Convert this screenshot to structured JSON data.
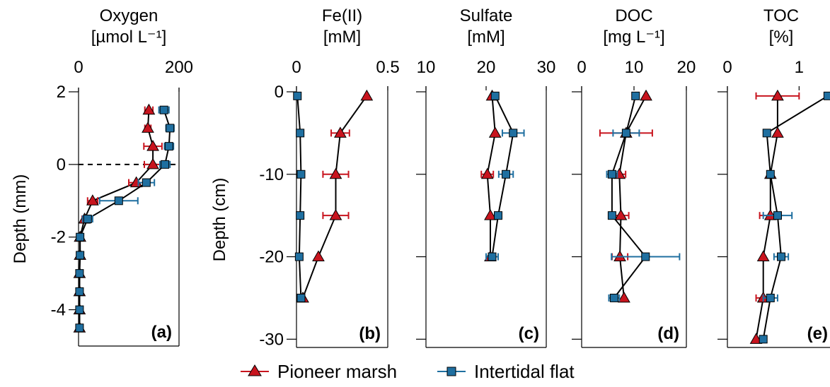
{
  "legend": {
    "series": [
      {
        "name": "Pioneer marsh",
        "color": "#c8141e",
        "marker": "triangle"
      },
      {
        "name": "Intertidal flat",
        "color": "#1f6fa0",
        "marker": "square"
      }
    ]
  },
  "chart_data": [
    {
      "panel": "(a)",
      "type": "line",
      "title": "Oxygen",
      "unit": "[µmol L⁻¹]",
      "ylabel": "Depth (mm)",
      "xlim": [
        0,
        200
      ],
      "ylim": [
        -5,
        2
      ],
      "xticks": [
        0,
        200
      ],
      "yticks": [
        2,
        0,
        -2,
        -4
      ],
      "dashed_zero_line": true,
      "series": [
        {
          "name": "Pioneer marsh",
          "x": [
            140,
            138,
            148,
            148,
            115,
            28,
            12,
            3,
            3,
            2,
            2,
            2,
            2
          ],
          "y": [
            1.5,
            1.0,
            0.5,
            0.0,
            -0.5,
            -1.0,
            -1.5,
            -2.0,
            -2.5,
            -3.0,
            -3.5,
            -4.0,
            -4.5
          ],
          "xerr": [
            8,
            6,
            18,
            17,
            15,
            10,
            5,
            0,
            0,
            0,
            0,
            0,
            0
          ]
        },
        {
          "name": "Intertidal flat",
          "x": [
            170,
            182,
            180,
            172,
            135,
            80,
            18,
            3,
            3,
            2,
            2,
            2,
            2
          ],
          "y": [
            1.5,
            1.0,
            0.5,
            0.0,
            -0.5,
            -1.0,
            -1.5,
            -2.0,
            -2.5,
            -3.0,
            -3.5,
            -4.0,
            -4.5
          ],
          "xerr": [
            10,
            8,
            9,
            10,
            16,
            38,
            10,
            0,
            0,
            0,
            0,
            0,
            0
          ]
        }
      ]
    },
    {
      "panel": "(b)",
      "type": "line",
      "title": "Fe(II)",
      "unit": "[mM]",
      "ylabel": "Depth (cm)",
      "xlim": [
        0,
        0.5
      ],
      "ylim": [
        -31,
        0
      ],
      "xticks": [
        0,
        0.5
      ],
      "yticks": [
        0,
        -10,
        -20,
        -30
      ],
      "series": [
        {
          "name": "Pioneer marsh",
          "x": [
            0.385,
            0.24,
            0.215,
            0.215,
            0.12,
            0.035
          ],
          "y": [
            -0.5,
            -5,
            -10,
            -15,
            -20,
            -25
          ],
          "xerr": [
            0,
            0.05,
            0.07,
            0.07,
            0,
            0
          ]
        },
        {
          "name": "Intertidal flat",
          "x": [
            0.005,
            0.02,
            0.025,
            0.02,
            0.015,
            0.025
          ],
          "y": [
            -0.5,
            -5,
            -10,
            -15,
            -20,
            -25
          ],
          "xerr": [
            0,
            0,
            0,
            0,
            0,
            0
          ]
        }
      ]
    },
    {
      "panel": "(c)",
      "type": "line",
      "title": "Sulfate",
      "unit": "[mM]",
      "xlim": [
        10,
        30
      ],
      "ylim": [
        -31,
        0
      ],
      "xticks": [
        10,
        20,
        30
      ],
      "yticks": [
        0,
        -10,
        -20,
        -30
      ],
      "series": [
        {
          "name": "Pioneer marsh",
          "x": [
            21,
            21.5,
            20.2,
            20.7,
            20.7
          ],
          "y": [
            -0.5,
            -5,
            -10,
            -15,
            -20
          ],
          "xerr": [
            0,
            0,
            1.0,
            0,
            0
          ]
        },
        {
          "name": "Intertidal flat",
          "x": [
            21.5,
            24.5,
            23.3,
            22,
            21
          ],
          "y": [
            -0.5,
            -5,
            -10,
            -15,
            -20
          ],
          "xerr": [
            0,
            1.8,
            1.2,
            0,
            1
          ]
        }
      ]
    },
    {
      "panel": "(d)",
      "type": "line",
      "title": "DOC",
      "unit": "[mg L⁻¹]",
      "xlim": [
        0,
        20
      ],
      "ylim": [
        -31,
        0
      ],
      "xticks": [
        0,
        10,
        20
      ],
      "yticks": [
        0,
        -10,
        -20,
        -30
      ],
      "series": [
        {
          "name": "Pioneer marsh",
          "x": [
            12.3,
            8.5,
            7.2,
            7.5,
            7.3,
            8.1
          ],
          "y": [
            -0.5,
            -5,
            -10,
            -15,
            -20,
            -25
          ],
          "xerr": [
            0,
            5,
            1.2,
            1.5,
            1.5,
            0
          ]
        },
        {
          "name": "Intertidal flat",
          "x": [
            10.3,
            8.5,
            5.8,
            5.8,
            12.2,
            6.2
          ],
          "y": [
            -0.5,
            -5,
            -10,
            -15,
            -20,
            -25
          ],
          "xerr": [
            0,
            2.5,
            1,
            0,
            6.5,
            1
          ]
        }
      ]
    },
    {
      "panel": "(e)",
      "type": "line",
      "title": "TOC",
      "unit": "[%]",
      "xlim": [
        0,
        1.5
      ],
      "ylim": [
        -31,
        0
      ],
      "xticks": [
        0,
        1
      ],
      "yticks": [
        0,
        -10,
        -20,
        -30
      ],
      "series": [
        {
          "name": "Pioneer marsh",
          "x": [
            0.7,
            0.7,
            0.6,
            0.6,
            0.5,
            0.5,
            0.4
          ],
          "y": [
            -0.5,
            -5,
            -10,
            -15,
            -20,
            -25,
            -30
          ],
          "xerr": [
            0.3,
            0,
            0,
            0.15,
            0,
            0.1,
            0
          ]
        },
        {
          "name": "Intertidal flat",
          "x": [
            1.4,
            0.55,
            0.6,
            0.7,
            0.75,
            0.6,
            0.5
          ],
          "y": [
            -0.5,
            -5,
            -10,
            -15,
            -20,
            -25,
            -30
          ],
          "xerr": [
            0,
            0,
            0,
            0.2,
            0.1,
            0.1,
            0
          ]
        }
      ]
    }
  ]
}
